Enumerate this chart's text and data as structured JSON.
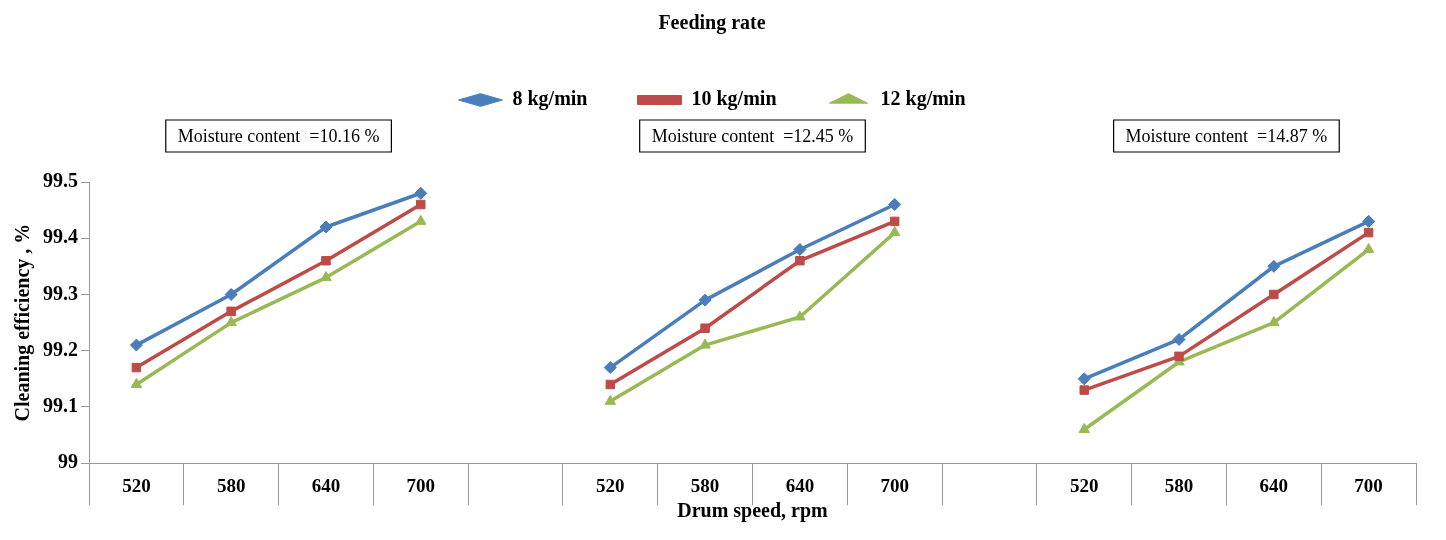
{
  "chart_data": {
    "type": "line",
    "xlabel": "Drum speed, rpm",
    "ylabel": "Cleaning efficiency , %",
    "legend_title": "Feeding rate",
    "legend": "top",
    "grid": false,
    "categories": [
      "520",
      "580",
      "640",
      "700",
      null,
      "520",
      "580",
      "640",
      "700",
      null,
      "520",
      "580",
      "640",
      "700"
    ],
    "ylim": [
      99,
      99.5
    ],
    "yticks": [
      99,
      99.1,
      99.2,
      99.3,
      99.4,
      99.5
    ],
    "series": [
      {
        "name": "8 kg/min",
        "color": "#4a7ebb",
        "marker": "diamond",
        "values": [
          99.21,
          99.3,
          99.42,
          99.48,
          null,
          99.17,
          99.29,
          99.38,
          99.46,
          null,
          99.15,
          99.22,
          99.35,
          99.43
        ]
      },
      {
        "name": "10 kg/min",
        "color": "#be4b48",
        "marker": "square",
        "values": [
          99.17,
          99.27,
          99.36,
          99.46,
          null,
          99.14,
          99.24,
          99.36,
          99.43,
          null,
          99.13,
          99.19,
          99.3,
          99.41
        ]
      },
      {
        "name": "12 kg/min",
        "color": "#98b954",
        "marker": "triangle",
        "values": [
          99.14,
          99.25,
          99.33,
          99.43,
          null,
          99.11,
          99.21,
          99.26,
          99.41,
          null,
          99.06,
          99.18,
          99.25,
          99.38
        ]
      }
    ],
    "annotations": [
      "Moisture content  =10.16 %",
      "Moisture content  =12.45 %",
      "Moisture content  =14.87 %"
    ]
  }
}
